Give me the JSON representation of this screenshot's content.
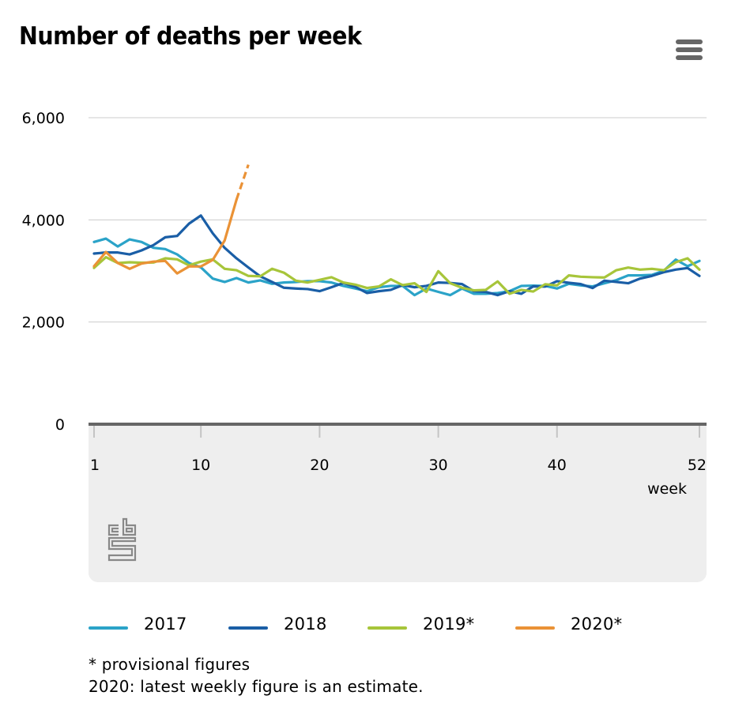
{
  "header": {
    "title": "Number of deaths per week",
    "menu_icon": "hamburger-menu-icon"
  },
  "logo": {
    "icon": "cbs-logo-icon",
    "text": "cbs"
  },
  "colors": {
    "2017": "#2ba3c8",
    "2018": "#1a5ea6",
    "2019": "#a7c53a",
    "2020": "#ea9236",
    "grid": "#cccccc",
    "axis": "#666666",
    "panel": "#eeeeee"
  },
  "notes": {
    "line1": "* provisional figures",
    "line2": "2020: latest weekly figure is an estimate."
  },
  "chart_data": {
    "type": "line",
    "title": "Number of deaths per week",
    "xlabel": "week",
    "ylabel": "",
    "xlim": [
      1,
      52
    ],
    "ylim": [
      0,
      6000
    ],
    "x_ticks": [
      1,
      10,
      20,
      30,
      40,
      52
    ],
    "y_ticks": [
      0,
      2000,
      4000,
      6000
    ],
    "y_tick_labels": [
      "0",
      "2,000",
      "4,000",
      "6,000"
    ],
    "grid": true,
    "legend_position": "bottom",
    "x": [
      1,
      2,
      3,
      4,
      5,
      6,
      7,
      8,
      9,
      10,
      11,
      12,
      13,
      14,
      15,
      16,
      17,
      18,
      19,
      20,
      21,
      22,
      23,
      24,
      25,
      26,
      27,
      28,
      29,
      30,
      31,
      32,
      33,
      34,
      35,
      36,
      37,
      38,
      39,
      40,
      41,
      42,
      43,
      44,
      45,
      46,
      47,
      48,
      49,
      50,
      51,
      52
    ],
    "series": [
      {
        "name": "2017",
        "label": "2017",
        "values": [
          3567,
          3633,
          3479,
          3618,
          3567,
          3453,
          3428,
          3324,
          3155,
          3070,
          2850,
          2784,
          2861,
          2774,
          2815,
          2748,
          2774,
          2784,
          2800,
          2800,
          2774,
          2707,
          2656,
          2604,
          2681,
          2707,
          2707,
          2527,
          2656,
          2590,
          2527,
          2656,
          2553,
          2553,
          2568,
          2604,
          2707,
          2712,
          2707,
          2656,
          2748,
          2717,
          2697,
          2759,
          2820,
          2913,
          2913,
          2923,
          3005,
          3222,
          3093,
          3196
        ]
      },
      {
        "name": "2018",
        "label": "2018",
        "values": [
          3340,
          3361,
          3361,
          3324,
          3402,
          3505,
          3659,
          3685,
          3926,
          4085,
          3736,
          3453,
          3247,
          3067,
          2895,
          2784,
          2671,
          2656,
          2645,
          2604,
          2681,
          2765,
          2691,
          2568,
          2604,
          2630,
          2722,
          2681,
          2707,
          2774,
          2765,
          2743,
          2604,
          2589,
          2527,
          2604,
          2553,
          2699,
          2694,
          2800,
          2769,
          2743,
          2666,
          2810,
          2784,
          2759,
          2851,
          2903,
          2975,
          3026,
          3057,
          2903
        ]
      },
      {
        "name": "2019*",
        "label": "2019*",
        "values": [
          3060,
          3270,
          3155,
          3170,
          3160,
          3165,
          3247,
          3227,
          3110,
          3183,
          3227,
          3042,
          3015,
          2903,
          2895,
          3042,
          2965,
          2810,
          2774,
          2826,
          2877,
          2774,
          2733,
          2666,
          2697,
          2836,
          2722,
          2759,
          2589,
          2996,
          2760,
          2671,
          2620,
          2630,
          2795,
          2553,
          2630,
          2597,
          2740,
          2717,
          2913,
          2887,
          2877,
          2872,
          3015,
          3067,
          3026,
          3042,
          3015,
          3170,
          3247,
          3026
        ]
      },
      {
        "name": "2020*",
        "label": "2020*",
        "values": [
          3093,
          3370,
          3155,
          3042,
          3145,
          3183,
          3196,
          2952,
          3088,
          3088,
          3216,
          3595,
          4395,
          5080
        ],
        "estimate_from_week": 13,
        "estimate_style": "dashed"
      }
    ]
  }
}
